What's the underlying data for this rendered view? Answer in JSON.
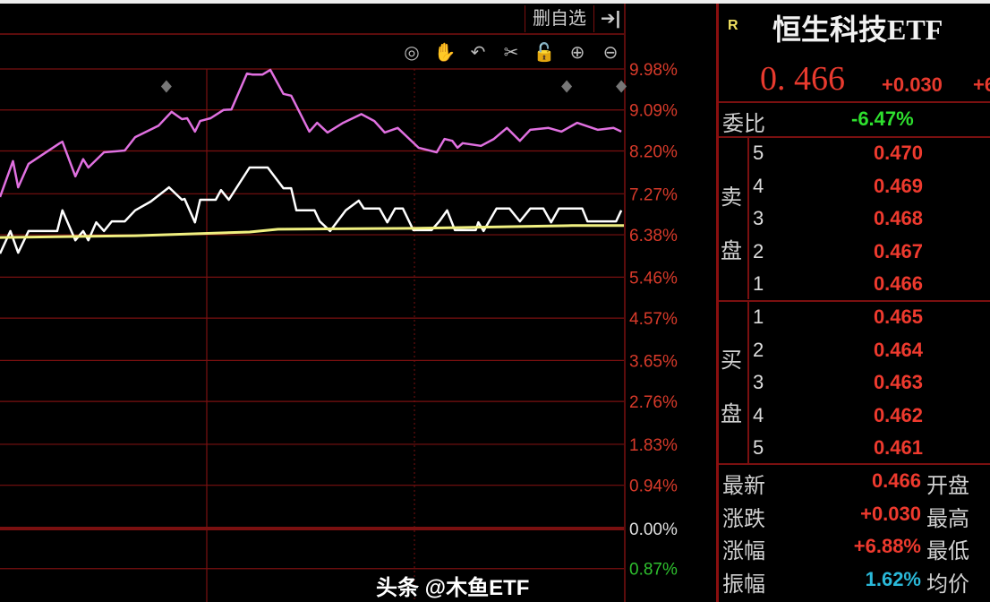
{
  "toolbar": {
    "remove_watchlist": "删自选",
    "icons": [
      "eye-icon",
      "hand-icon",
      "undo-icon",
      "scissors-icon",
      "lock-icon",
      "zoom-in-icon",
      "zoom-out-icon"
    ],
    "icon_glyphs": [
      "◎",
      "✋",
      "↶",
      "✂",
      "🔓",
      "⊕",
      "⊖"
    ],
    "exit_glyph": "➔|"
  },
  "quote": {
    "badge": "R",
    "name": "恒生科技ETF",
    "price": "0. 466",
    "change": "+0.030",
    "change_pct_cut": "+6",
    "weibi_label": "委比",
    "weibi_value": "-6.47%"
  },
  "order_book": {
    "sell_label": [
      "卖",
      "盘"
    ],
    "buy_label": [
      "买",
      "盘"
    ],
    "sell": [
      {
        "level": "5",
        "price": "0.470"
      },
      {
        "level": "4",
        "price": "0.469"
      },
      {
        "level": "3",
        "price": "0.468"
      },
      {
        "level": "2",
        "price": "0.467"
      },
      {
        "level": "1",
        "price": "0.466"
      }
    ],
    "buy": [
      {
        "level": "1",
        "price": "0.465"
      },
      {
        "level": "2",
        "price": "0.464"
      },
      {
        "level": "3",
        "price": "0.463"
      },
      {
        "level": "4",
        "price": "0.462"
      },
      {
        "level": "5",
        "price": "0.461"
      }
    ]
  },
  "stats": [
    {
      "name": "最新",
      "value": "0.466",
      "name2": "开盘",
      "color": "#ee3a2e"
    },
    {
      "name": "涨跌",
      "value": "+0.030",
      "name2": "最高",
      "color": "#ee3a2e"
    },
    {
      "name": "涨幅",
      "value": "+6.88%",
      "name2": "最低",
      "color": "#ee3a2e"
    },
    {
      "name": "振幅",
      "value": "1.62%",
      "name2": "均价",
      "color": "#2ab8d8"
    }
  ],
  "watermark": "头条 @木鱼ETF",
  "colors": {
    "up": "#e83a2e",
    "down": "#2ee02e",
    "grid": "#7a1010",
    "purple": "#e070e0",
    "white": "#ffffff",
    "yellow": "#f0f080"
  },
  "chart_data": {
    "type": "line",
    "ylim": [
      -0.87,
      9.98
    ],
    "xlim": [
      0,
      240
    ],
    "grid": true,
    "y_ticks": [
      {
        "value": 9.98,
        "label": "9.98%"
      },
      {
        "value": 9.09,
        "label": "9.09%"
      },
      {
        "value": 8.2,
        "label": "8.20%"
      },
      {
        "value": 7.27,
        "label": "7.27%"
      },
      {
        "value": 6.38,
        "label": "6.38%"
      },
      {
        "value": 5.46,
        "label": "5.46%"
      },
      {
        "value": 4.57,
        "label": "4.57%"
      },
      {
        "value": 3.65,
        "label": "3.65%"
      },
      {
        "value": 2.76,
        "label": "2.76%"
      },
      {
        "value": 1.83,
        "label": "1.83%"
      },
      {
        "value": 0.94,
        "label": "0.94%"
      },
      {
        "value": 0.0,
        "label": "0.00%"
      },
      {
        "value": -0.87,
        "label": "0.87%"
      }
    ],
    "series": [
      {
        "color": "#e070e0",
        "points": [
          [
            0,
            7.2
          ],
          [
            5,
            7.98
          ],
          [
            7,
            7.41
          ],
          [
            11,
            7.92
          ],
          [
            23,
            8.37
          ],
          [
            24,
            8.4
          ],
          [
            29,
            7.65
          ],
          [
            32,
            8.02
          ],
          [
            34,
            7.84
          ],
          [
            40,
            8.17
          ],
          [
            48,
            8.21
          ],
          [
            52,
            8.5
          ],
          [
            61,
            8.75
          ],
          [
            66,
            9.05
          ],
          [
            70,
            8.89
          ],
          [
            72,
            8.91
          ],
          [
            75,
            8.62
          ],
          [
            77,
            8.85
          ],
          [
            81,
            8.91
          ],
          [
            86,
            9.09
          ],
          [
            89,
            9.1
          ],
          [
            95,
            9.88
          ],
          [
            97,
            9.86
          ],
          [
            101,
            9.86
          ],
          [
            104,
            9.96
          ],
          [
            109,
            9.44
          ],
          [
            112,
            9.4
          ],
          [
            119,
            8.62
          ],
          [
            122,
            8.81
          ],
          [
            126,
            8.6
          ],
          [
            132,
            8.81
          ],
          [
            139,
            9.0
          ],
          [
            144,
            8.85
          ],
          [
            148,
            8.6
          ],
          [
            153,
            8.7
          ],
          [
            161,
            8.27
          ],
          [
            168,
            8.17
          ],
          [
            171,
            8.46
          ],
          [
            174,
            8.42
          ],
          [
            176,
            8.27
          ],
          [
            178,
            8.37
          ],
          [
            185,
            8.31
          ],
          [
            190,
            8.46
          ],
          [
            195,
            8.7
          ],
          [
            200,
            8.42
          ],
          [
            204,
            8.66
          ],
          [
            211,
            8.7
          ],
          [
            216,
            8.62
          ],
          [
            222,
            8.81
          ],
          [
            230,
            8.66
          ],
          [
            236,
            8.7
          ],
          [
            239,
            8.62
          ]
        ]
      },
      {
        "color": "#ffffff",
        "points": [
          [
            0,
            5.97
          ],
          [
            4,
            6.46
          ],
          [
            7,
            5.99
          ],
          [
            11,
            6.46
          ],
          [
            22,
            6.46
          ],
          [
            24,
            6.91
          ],
          [
            29,
            6.26
          ],
          [
            32,
            6.46
          ],
          [
            34,
            6.26
          ],
          [
            37,
            6.65
          ],
          [
            40,
            6.46
          ],
          [
            43,
            6.67
          ],
          [
            48,
            6.67
          ],
          [
            52,
            6.91
          ],
          [
            58,
            7.1
          ],
          [
            65,
            7.41
          ],
          [
            70,
            7.14
          ],
          [
            71,
            7.16
          ],
          [
            75,
            6.65
          ],
          [
            77,
            7.14
          ],
          [
            83,
            7.14
          ],
          [
            85,
            7.35
          ],
          [
            88,
            7.14
          ],
          [
            96,
            7.84
          ],
          [
            103,
            7.84
          ],
          [
            109,
            7.39
          ],
          [
            112,
            7.39
          ],
          [
            114,
            6.91
          ],
          [
            121,
            6.91
          ],
          [
            123,
            6.67
          ],
          [
            127,
            6.46
          ],
          [
            133,
            6.91
          ],
          [
            138,
            7.12
          ],
          [
            140,
            6.95
          ],
          [
            146,
            6.95
          ],
          [
            149,
            6.65
          ],
          [
            152,
            6.95
          ],
          [
            155,
            6.95
          ],
          [
            159,
            6.48
          ],
          [
            166,
            6.48
          ],
          [
            169,
            6.67
          ],
          [
            172,
            6.91
          ],
          [
            175,
            6.48
          ],
          [
            183,
            6.48
          ],
          [
            184,
            6.65
          ],
          [
            186,
            6.46
          ],
          [
            191,
            6.95
          ],
          [
            196,
            6.95
          ],
          [
            200,
            6.67
          ],
          [
            204,
            6.95
          ],
          [
            209,
            6.95
          ],
          [
            212,
            6.65
          ],
          [
            215,
            6.95
          ],
          [
            224,
            6.95
          ],
          [
            226,
            6.67
          ],
          [
            237,
            6.67
          ],
          [
            239,
            6.91
          ]
        ]
      },
      {
        "color": "#f0f080",
        "points": [
          [
            0,
            6.32
          ],
          [
            52,
            6.36
          ],
          [
            96,
            6.44
          ],
          [
            107,
            6.5
          ],
          [
            159,
            6.52
          ],
          [
            220,
            6.58
          ],
          [
            240,
            6.58
          ]
        ]
      }
    ],
    "markers": [
      [
        64,
        9.6
      ],
      [
        218,
        9.6
      ],
      [
        239,
        9.6
      ]
    ]
  }
}
